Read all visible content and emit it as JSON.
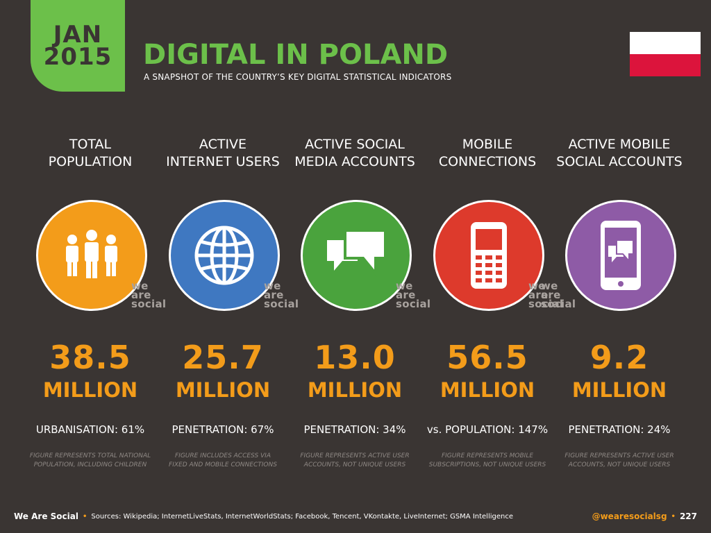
{
  "header": {
    "badge_month": "JAN",
    "badge_year": "2015",
    "title": "DIGITAL IN POLAND",
    "subtitle": "A SNAPSHOT OF THE COUNTRY’S KEY DIGITAL STATISTICAL INDICATORS"
  },
  "watermark": {
    "line1": "we",
    "line2": "are",
    "line3": "social"
  },
  "stats": [
    {
      "label": "TOTAL\nPOPULATION",
      "icon": "people-icon",
      "color": "#f39c1a",
      "value": "38.5",
      "unit": "MILLION",
      "stat": "URBANISATION: 61%",
      "note": "FIGURE REPRESENTS TOTAL NATIONAL\nPOPULATION, INCLUDING CHILDREN"
    },
    {
      "label": "ACTIVE\nINTERNET USERS",
      "icon": "globe-icon",
      "color": "#3f78c1",
      "value": "25.7",
      "unit": "MILLION",
      "stat": "PENETRATION: 67%",
      "note": "FIGURE INCLUDES ACCESS VIA\nFIXED AND MOBILE CONNECTIONS"
    },
    {
      "label": "ACTIVE SOCIAL\nMEDIA ACCOUNTS",
      "icon": "speech-bubbles-icon",
      "color": "#4aa33d",
      "value": "13.0",
      "unit": "MILLION",
      "stat": "PENETRATION: 34%",
      "note": "FIGURE REPRESENTS ACTIVE USER\nACCOUNTS, NOT UNIQUE USERS"
    },
    {
      "label": "MOBILE\nCONNECTIONS",
      "icon": "mobile-phone-icon",
      "color": "#dd3a2c",
      "value": "56.5",
      "unit": "MILLION",
      "stat": "vs. POPULATION: 147%",
      "note": "FIGURE REPRESENTS MOBILE\nSUBSCRIPTIONS, NOT UNIQUE USERS"
    },
    {
      "label": "ACTIVE MOBILE\nSOCIAL ACCOUNTS",
      "icon": "smartphone-chat-icon",
      "color": "#8e5ba6",
      "value": "9.2",
      "unit": "MILLION",
      "stat": "PENETRATION: 24%",
      "note": "FIGURE REPRESENTS ACTIVE USER\nACCOUNTS, NOT UNIQUE USERS"
    }
  ],
  "footer": {
    "brand": "We Are Social",
    "separator": "•",
    "sources": "Sources: Wikipedia; InternetLiveStats, InternetWorldStats; Facebook, Tencent, VKontakte, LiveInternet; GSMA Intelligence",
    "handle": "@wearesocialsg",
    "page": "227"
  },
  "colors": {
    "background": "#3a3533",
    "accent_green": "#6cc04a",
    "accent_orange": "#f39c1a",
    "flag_white": "#ffffff",
    "flag_red": "#dc143c"
  }
}
